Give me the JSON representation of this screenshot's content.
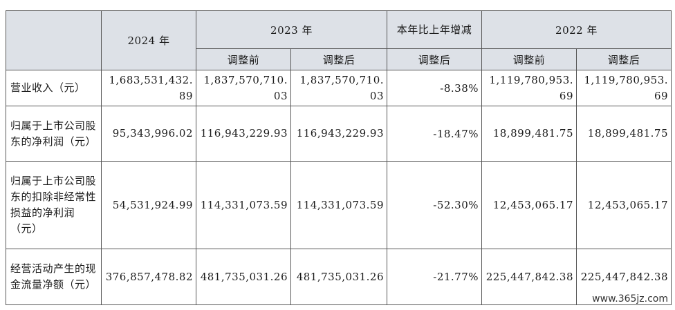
{
  "headers": {
    "y2024": "2024 年",
    "y2023": "2023 年",
    "change": "本年比上年增减",
    "y2022": "2022 年",
    "before": "调整前",
    "after": "调整后",
    "change_after": "调整后"
  },
  "rows": [
    {
      "label": "营业收入（元）",
      "v2024": "1,683,531,432.89",
      "v2023_before": "1,837,570,710.03",
      "v2023_after": "1,837,570,710.03",
      "change": "-8.38%",
      "v2022_before": "1,119,780,953.69",
      "v2022_after": "1,119,780,953.69"
    },
    {
      "label": "归属于上市公司股东的净利润（元）",
      "v2024": "95,343,996.02",
      "v2023_before": "116,943,229.93",
      "v2023_after": "116,943,229.93",
      "change": "-18.47%",
      "v2022_before": "18,899,481.75",
      "v2022_after": "18,899,481.75"
    },
    {
      "label": "归属于上市公司股东的扣除非经常性损益的净利润（元）",
      "v2024": "54,531,924.99",
      "v2023_before": "114,331,073.59",
      "v2023_after": "114,331,073.59",
      "change": "-52.30%",
      "v2022_before": "12,453,065.17",
      "v2022_after": "12,453,065.17"
    },
    {
      "label": "经营活动产生的现金流量净额（元）",
      "v2024": "376,857,478.82",
      "v2023_before": "481,735,031.26",
      "v2023_after": "481,735,031.26",
      "change": "-21.77%",
      "v2022_before": "225,447,842.38",
      "v2022_after": "225,447,842.38"
    }
  ],
  "watermark": "www.365jz.com"
}
